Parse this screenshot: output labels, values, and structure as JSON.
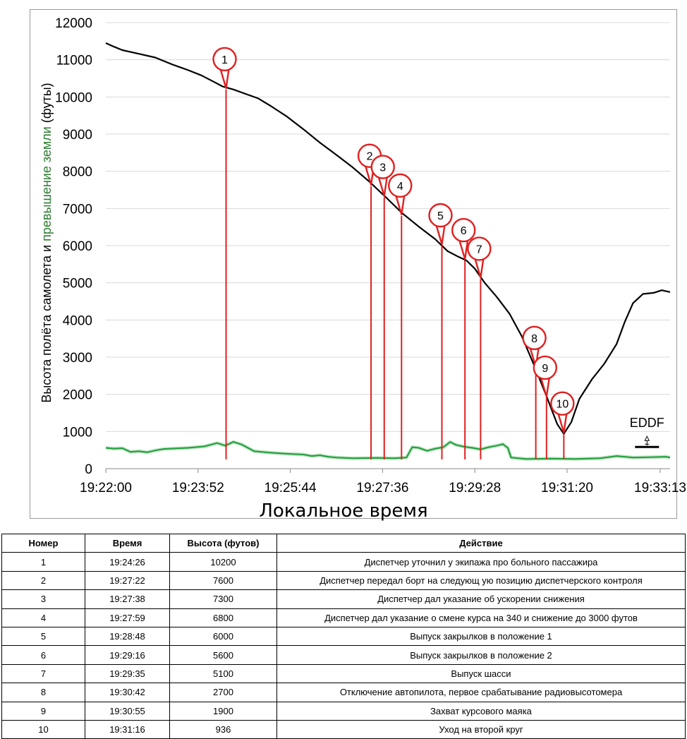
{
  "chart_data": {
    "type": "line",
    "ylabel_parts": [
      {
        "text": "Высота полёта самолета и ",
        "color": "#000000"
      },
      {
        "text": "превышение земли",
        "color": "#2e7d32"
      },
      {
        "text": " (футы)",
        "color": "#000000"
      }
    ],
    "xlabel": "Локальное время",
    "x_ticks": [
      "19:22:00",
      "19:23:52",
      "19:25:44",
      "19:27:36",
      "19:29:28",
      "19:31:20",
      "19:33:13"
    ],
    "y_ticks": [
      0,
      1000,
      2000,
      3000,
      4000,
      5000,
      6000,
      7000,
      8000,
      9000,
      10000,
      11000,
      12000
    ],
    "xlim": [
      "19:22:00",
      "19:33:25"
    ],
    "ylim": [
      0,
      12000
    ],
    "grid": true,
    "series": [
      {
        "key": "altitude",
        "color": "#000000",
        "points": [
          [
            "19:22:00",
            11450
          ],
          [
            "19:22:10",
            11350
          ],
          [
            "19:22:20",
            11260
          ],
          [
            "19:22:40",
            11160
          ],
          [
            "19:23:00",
            11060
          ],
          [
            "19:23:20",
            10880
          ],
          [
            "19:23:40",
            10720
          ],
          [
            "19:23:56",
            10580
          ],
          [
            "19:24:10",
            10420
          ],
          [
            "19:24:22",
            10280
          ],
          [
            "19:24:35",
            10200
          ],
          [
            "19:24:50",
            10080
          ],
          [
            "19:25:05",
            9960
          ],
          [
            "19:25:20",
            9760
          ],
          [
            "19:25:40",
            9470
          ],
          [
            "19:26:00",
            9130
          ],
          [
            "19:26:20",
            8770
          ],
          [
            "19:26:40",
            8440
          ],
          [
            "19:27:00",
            8100
          ],
          [
            "19:27:20",
            7720
          ],
          [
            "19:27:40",
            7300
          ],
          [
            "19:28:00",
            6870
          ],
          [
            "19:28:20",
            6510
          ],
          [
            "19:28:40",
            6170
          ],
          [
            "19:28:55",
            5850
          ],
          [
            "19:29:08",
            5700
          ],
          [
            "19:29:18",
            5600
          ],
          [
            "19:29:28",
            5380
          ],
          [
            "19:29:40",
            5000
          ],
          [
            "19:29:55",
            4610
          ],
          [
            "19:30:10",
            4170
          ],
          [
            "19:30:25",
            3560
          ],
          [
            "19:30:40",
            2780
          ],
          [
            "19:30:55",
            1950
          ],
          [
            "19:31:08",
            1200
          ],
          [
            "19:31:16",
            936
          ],
          [
            "19:31:25",
            1250
          ],
          [
            "19:31:35",
            1880
          ],
          [
            "19:31:50",
            2400
          ],
          [
            "19:32:05",
            2820
          ],
          [
            "19:32:20",
            3350
          ],
          [
            "19:32:30",
            3950
          ],
          [
            "19:32:40",
            4450
          ],
          [
            "19:32:52",
            4700
          ],
          [
            "19:33:05",
            4730
          ],
          [
            "19:33:15",
            4800
          ],
          [
            "19:33:23",
            4760
          ],
          [
            "19:33:25",
            4750
          ]
        ]
      },
      {
        "key": "terrain",
        "color": "#1e9e3a",
        "points": [
          [
            "19:22:00",
            560
          ],
          [
            "19:22:10",
            540
          ],
          [
            "19:22:20",
            550
          ],
          [
            "19:22:30",
            450
          ],
          [
            "19:22:40",
            470
          ],
          [
            "19:22:50",
            440
          ],
          [
            "19:23:00",
            490
          ],
          [
            "19:23:10",
            530
          ],
          [
            "19:23:20",
            540
          ],
          [
            "19:23:40",
            560
          ],
          [
            "19:24:00",
            600
          ],
          [
            "19:24:15",
            690
          ],
          [
            "19:24:25",
            620
          ],
          [
            "19:24:35",
            720
          ],
          [
            "19:24:45",
            650
          ],
          [
            "19:25:00",
            470
          ],
          [
            "19:25:20",
            430
          ],
          [
            "19:25:40",
            400
          ],
          [
            "19:26:00",
            380
          ],
          [
            "19:26:10",
            340
          ],
          [
            "19:26:20",
            360
          ],
          [
            "19:26:30",
            320
          ],
          [
            "19:26:40",
            300
          ],
          [
            "19:27:00",
            280
          ],
          [
            "19:27:30",
            290
          ],
          [
            "19:27:50",
            280
          ],
          [
            "19:28:05",
            300
          ],
          [
            "19:28:12",
            580
          ],
          [
            "19:28:20",
            560
          ],
          [
            "19:28:30",
            480
          ],
          [
            "19:28:40",
            540
          ],
          [
            "19:28:50",
            580
          ],
          [
            "19:28:58",
            720
          ],
          [
            "19:29:05",
            640
          ],
          [
            "19:29:15",
            590
          ],
          [
            "19:29:25",
            560
          ],
          [
            "19:29:35",
            520
          ],
          [
            "19:29:45",
            580
          ],
          [
            "19:29:55",
            620
          ],
          [
            "19:30:02",
            660
          ],
          [
            "19:30:08",
            560
          ],
          [
            "19:30:12",
            300
          ],
          [
            "19:30:30",
            260
          ],
          [
            "19:31:00",
            270
          ],
          [
            "19:31:30",
            260
          ],
          [
            "19:32:00",
            280
          ],
          [
            "19:32:20",
            340
          ],
          [
            "19:32:40",
            300
          ],
          [
            "19:33:00",
            310
          ],
          [
            "19:33:20",
            320
          ],
          [
            "19:33:25",
            300
          ]
        ]
      }
    ],
    "markers": [
      {
        "label": "1",
        "time": "19:24:26",
        "value": 10200
      },
      {
        "label": "2",
        "time": "19:27:22",
        "value": 7600
      },
      {
        "label": "3",
        "time": "19:27:38",
        "value": 7300
      },
      {
        "label": "4",
        "time": "19:27:59",
        "value": 6800
      },
      {
        "label": "5",
        "time": "19:28:48",
        "value": 6000
      },
      {
        "label": "6",
        "time": "19:29:16",
        "value": 5600
      },
      {
        "label": "7",
        "time": "19:29:35",
        "value": 5100
      },
      {
        "label": "8",
        "time": "19:30:42",
        "value": 2700
      },
      {
        "label": "9",
        "time": "19:30:55",
        "value": 1900
      },
      {
        "label": "10",
        "time": "19:31:16",
        "value": 936
      }
    ],
    "annotation": {
      "text": "EDDF",
      "time": "19:32:57",
      "value": 300
    }
  },
  "table": {
    "headers": [
      "Номер",
      "Время",
      "Высота (футов)",
      "Действие"
    ],
    "rows": [
      [
        "1",
        "19:24:26",
        "10200",
        "Диспетчер уточнил у экипажа про больного пассажира"
      ],
      [
        "2",
        "19:27:22",
        "7600",
        "Диспетчер передал борт на следующ ую позицию диспетчерского контроля"
      ],
      [
        "3",
        "19:27:38",
        "7300",
        "Диспетчер дал указание об ускорении снижения"
      ],
      [
        "4",
        "19:27:59",
        "6800",
        "Диспетчер дал указание о смене курса на 340 и снижение до 3000 футов"
      ],
      [
        "5",
        "19:28:48",
        "6000",
        "Выпуск закрылков в положение 1"
      ],
      [
        "6",
        "19:29:16",
        "5600",
        "Выпуск закрылков в положение 2"
      ],
      [
        "7",
        "19:29:35",
        "5100",
        "Выпуск шасси"
      ],
      [
        "8",
        "19:30:42",
        "2700",
        "Отключение автопилота, первое срабатывание радиовысотомера"
      ],
      [
        "9",
        "19:30:55",
        "1900",
        "Захват курсового маяка"
      ],
      [
        "10",
        "19:31:16",
        "936",
        "Уход на второй круг"
      ]
    ]
  }
}
